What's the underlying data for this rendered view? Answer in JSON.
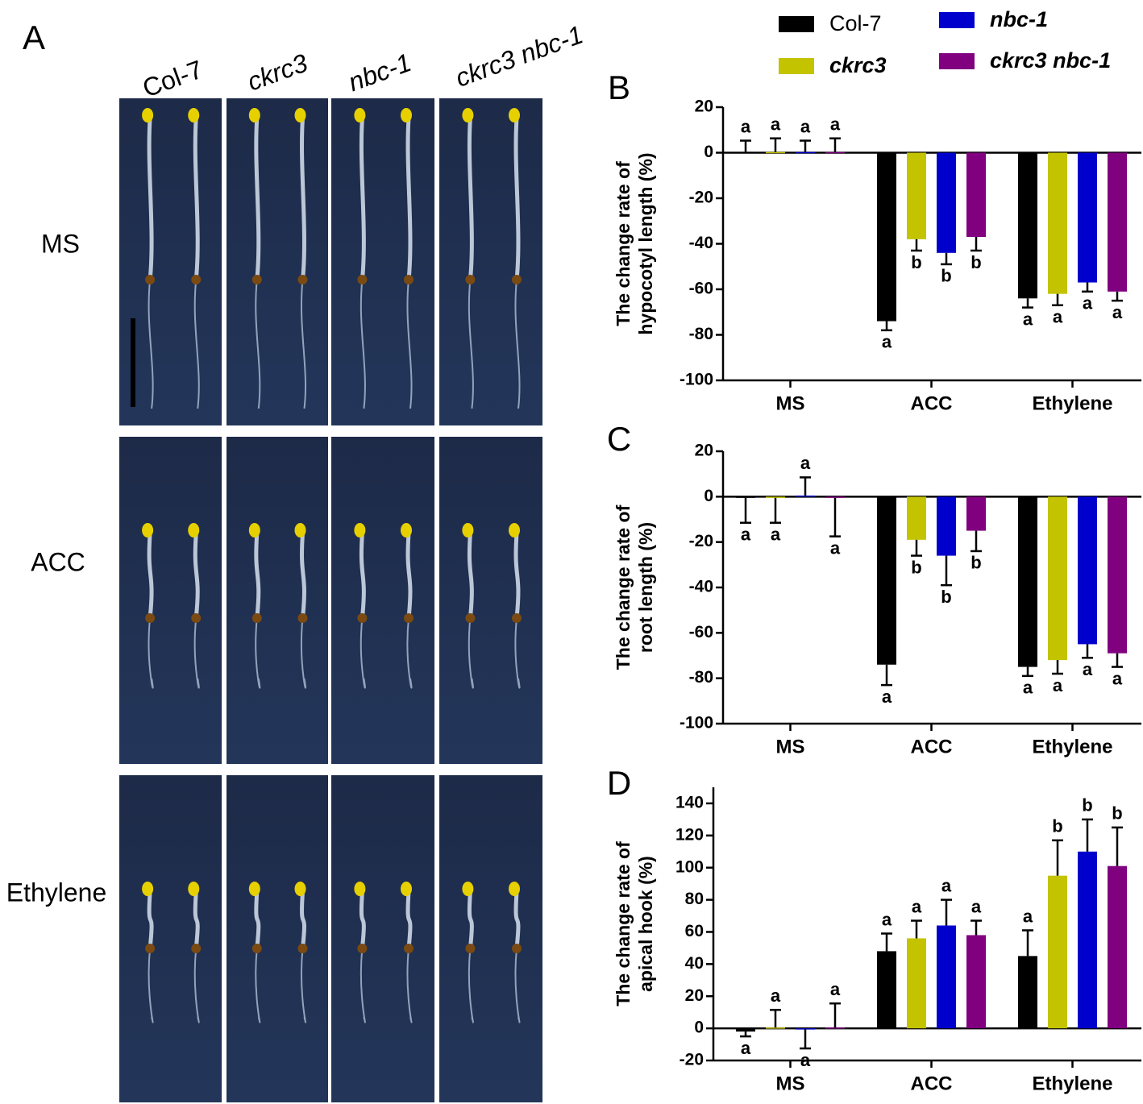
{
  "figure": {
    "panel_letters": [
      "A",
      "B",
      "C",
      "D"
    ],
    "photo_columns": [
      "Col-7",
      "ckrc3",
      "nbc-1",
      "ckrc3 nbc-1"
    ],
    "photo_rows": [
      "MS",
      "ACC",
      "Ethylene"
    ]
  },
  "chart_data": [
    {
      "type": "bar",
      "ylabel": [
        "The change rate of",
        "hypocotyl length (%)"
      ],
      "categories": [
        "MS",
        "ACC",
        "Ethylene"
      ],
      "ylim": [
        -100,
        20
      ],
      "yticks": [
        -100,
        -80,
        -60,
        -40,
        -20,
        0,
        20
      ],
      "series": [
        {
          "name": "Col-7",
          "color": "#000000",
          "italic": false,
          "values": [
            0.3,
            -74,
            -64
          ],
          "errors": [
            5,
            4,
            4
          ],
          "letters": [
            "a",
            "a",
            "a"
          ]
        },
        {
          "name": "ckrc3",
          "color": "#c3c300",
          "italic": true,
          "values": [
            0.3,
            -38,
            -62
          ],
          "errors": [
            6,
            5,
            5
          ],
          "letters": [
            "a",
            "b",
            "a"
          ]
        },
        {
          "name": "nbc-1",
          "color": "#0000cc",
          "italic": true,
          "values": [
            0.3,
            -44,
            -57
          ],
          "errors": [
            5,
            5,
            4
          ],
          "letters": [
            "a",
            "b",
            "a"
          ]
        },
        {
          "name": "ckrc3 nbc-1",
          "color": "#800080",
          "italic": true,
          "values": [
            0.3,
            -37,
            -61
          ],
          "errors": [
            6,
            6,
            4
          ],
          "letters": [
            "a",
            "b",
            "a"
          ]
        }
      ]
    },
    {
      "type": "bar",
      "ylabel": [
        "The change rate of",
        "root length (%)"
      ],
      "categories": [
        "MS",
        "ACC",
        "Ethylene"
      ],
      "ylim": [
        -100,
        20
      ],
      "yticks": [
        -100,
        -80,
        -60,
        -40,
        -20,
        0,
        20
      ],
      "series": [
        {
          "name": "Col-7",
          "color": "#000000",
          "values": [
            -0.5,
            -74,
            -75
          ],
          "errors": [
            11,
            9,
            4
          ],
          "letters": [
            "a",
            "a",
            "a"
          ]
        },
        {
          "name": "ckrc3",
          "color": "#c3c300",
          "values": [
            -0.5,
            -19,
            -72
          ],
          "errors": [
            11,
            7,
            6
          ],
          "letters": [
            "a",
            "b",
            "a"
          ]
        },
        {
          "name": "nbc-1",
          "color": "#0000cc",
          "values": [
            0.5,
            -26,
            -65
          ],
          "errors": [
            8,
            13,
            6
          ],
          "letters": [
            "a",
            "b",
            "a"
          ]
        },
        {
          "name": "ckrc3 nbc-1",
          "color": "#800080",
          "values": [
            -0.5,
            -15,
            -69
          ],
          "errors": [
            17,
            9,
            6
          ],
          "letters": [
            "a",
            "b",
            "a"
          ]
        }
      ]
    },
    {
      "type": "bar",
      "ylabel": [
        "The change rate of",
        "apical hook (%)"
      ],
      "categories": [
        "MS",
        "ACC",
        "Ethylene"
      ],
      "ylim": [
        -20,
        150
      ],
      "yticks": [
        -20,
        0,
        20,
        40,
        60,
        80,
        100,
        120,
        140
      ],
      "series": [
        {
          "name": "Col-7",
          "color": "#000000",
          "values": [
            -2,
            48,
            45
          ],
          "errors": [
            3,
            11,
            16
          ],
          "letters": [
            "a",
            "a",
            "a"
          ]
        },
        {
          "name": "ckrc3",
          "color": "#c3c300",
          "values": [
            0.5,
            56,
            95
          ],
          "errors": [
            11,
            11,
            22
          ],
          "letters": [
            "a",
            "a",
            "b"
          ]
        },
        {
          "name": "nbc-1",
          "color": "#0000cc",
          "values": [
            -0.5,
            64,
            110
          ],
          "errors": [
            12,
            16,
            20
          ],
          "letters": [
            "a",
            "a",
            "b"
          ]
        },
        {
          "name": "ckrc3 nbc-1",
          "color": "#800080",
          "values": [
            0.5,
            58,
            101
          ],
          "errors": [
            15,
            9,
            24
          ],
          "letters": [
            "a",
            "a",
            "b"
          ]
        }
      ]
    }
  ]
}
